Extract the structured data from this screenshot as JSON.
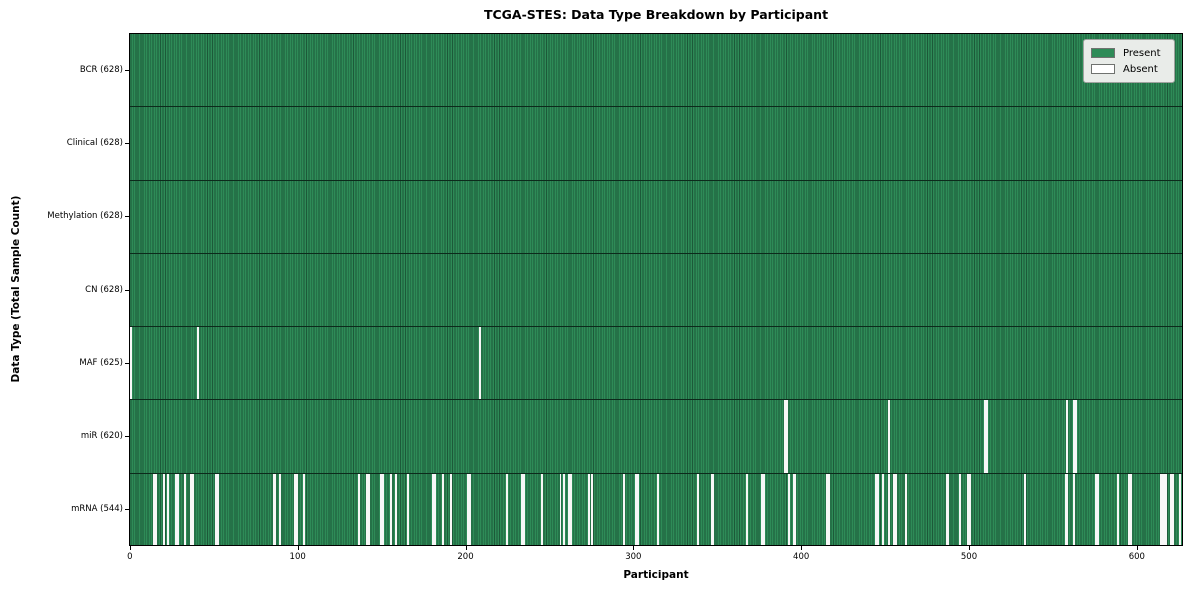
{
  "chart_data": {
    "type": "heatmap",
    "title": "TCGA-STES: Data Type Breakdown by Participant",
    "xlabel": "Participant",
    "ylabel": "Data Type (Total Sample Count)",
    "x_ticks": [
      0,
      100,
      200,
      300,
      400,
      500,
      600
    ],
    "xlim": [
      -0.5,
      627.5
    ],
    "n_participants": 628,
    "grid": false,
    "legend": {
      "position": "upper right",
      "entries": [
        {
          "label": "Present",
          "color": "#2e8b57"
        },
        {
          "label": "Absent",
          "color": "#ffffff"
        }
      ]
    },
    "colors": {
      "present": "#2e8b57",
      "cell_edge": "#1c5a39",
      "absent": "#f7f7f7",
      "row_divider": "#0c2a1b",
      "axis": "#000000",
      "legend_bg": "#e9ece9",
      "legend_border": "#9fa29f"
    },
    "rows": [
      {
        "label": "BCR",
        "display": "BCR (628)",
        "present_count": 628,
        "absent": []
      },
      {
        "label": "Clinical",
        "display": "Clinical (628)",
        "present_count": 628,
        "absent": []
      },
      {
        "label": "Methylation",
        "display": "Methylation (628)",
        "present_count": 628,
        "absent": []
      },
      {
        "label": "CN",
        "display": "CN (628)",
        "present_count": 628,
        "absent": []
      },
      {
        "label": "MAF",
        "display": "MAF (625)",
        "present_count": 625,
        "absent": [
          0,
          40,
          208
        ]
      },
      {
        "label": "miR",
        "display": "miR (620)",
        "present_count": 620,
        "absent": [
          390,
          391,
          452,
          509,
          510,
          558,
          562,
          563
        ]
      },
      {
        "label": "mRNA",
        "display": "mRNA (544)",
        "present_count": 544,
        "absent": [
          14,
          15,
          20,
          22,
          27,
          28,
          32,
          36,
          37,
          51,
          52,
          85,
          86,
          89,
          98,
          99,
          103,
          136,
          141,
          142,
          149,
          150,
          155,
          158,
          165,
          180,
          181,
          186,
          191,
          201,
          202,
          224,
          233,
          234,
          245,
          256,
          258,
          261,
          262,
          273,
          275,
          294,
          301,
          302,
          314,
          338,
          346,
          347,
          367,
          376,
          377,
          392,
          395,
          396,
          415,
          416,
          444,
          445,
          448,
          452,
          455,
          456,
          462,
          486,
          487,
          494,
          499,
          500,
          533,
          557,
          558,
          562,
          575,
          576,
          588,
          595,
          596,
          614,
          615,
          616,
          617,
          620,
          621,
          625
        ]
      }
    ]
  }
}
